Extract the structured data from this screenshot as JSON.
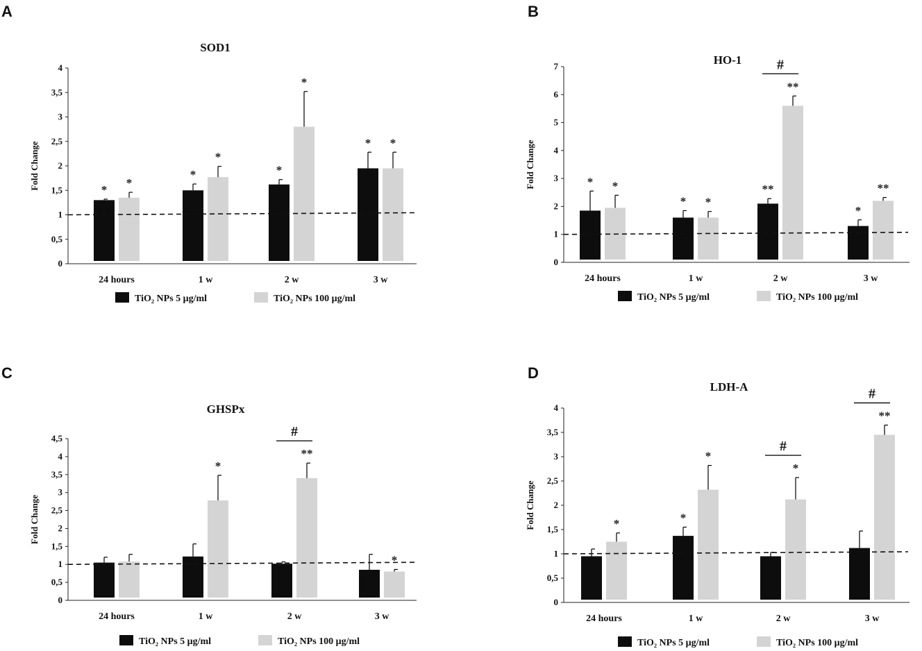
{
  "figure": {
    "series_colors": [
      "#0d0d0d",
      "#d4d4d4"
    ],
    "error_color": "#000000",
    "baseline_value": 1,
    "legend": [
      "TiO₂ NPs 5 μg/ml",
      "TiO₂ NPs 100 μg/ml"
    ]
  },
  "chart_data": [
    {
      "panel": "A",
      "type": "bar",
      "title": "SOD1",
      "ylabel": "Fold Change",
      "xlabel": "",
      "categories": [
        "24 hours",
        "1 w",
        "2 w",
        "3 w"
      ],
      "ylim": [
        0,
        4
      ],
      "yticks": [
        0,
        0.5,
        1,
        1.5,
        2,
        2.5,
        3,
        3.5,
        4
      ],
      "ytick_labels": [
        "0",
        "0,5",
        "1",
        "1,5",
        "2",
        "2,5",
        "3",
        "3,5",
        "4"
      ],
      "series": [
        {
          "name": "TiO₂ NPs 5 μg/ml",
          "values": [
            1.3,
            1.5,
            1.62,
            1.95
          ],
          "errors": [
            0.02,
            0.13,
            0.1,
            0.33
          ],
          "significance": [
            "*",
            "*",
            "*",
            "*"
          ]
        },
        {
          "name": "TiO₂ NPs 100 μg/ml",
          "values": [
            1.35,
            1.77,
            2.8,
            1.95
          ],
          "errors": [
            0.11,
            0.22,
            0.72,
            0.33
          ],
          "significance": [
            "*",
            "*",
            "*",
            "*"
          ]
        }
      ],
      "group_brackets": []
    },
    {
      "panel": "B",
      "type": "bar",
      "title": "HO-1",
      "ylabel": "Fold Change",
      "xlabel": "",
      "categories": [
        "24 hours",
        "1 w",
        "2 w",
        "3 w"
      ],
      "ylim": [
        0,
        7
      ],
      "yticks": [
        0,
        1,
        2,
        3,
        4,
        5,
        6,
        7
      ],
      "ytick_labels": [
        "0",
        "1",
        "2",
        "3",
        "4",
        "5",
        "6",
        "7"
      ],
      "series": [
        {
          "name": "TiO₂ NPs 5 μg/ml",
          "values": [
            1.85,
            1.6,
            2.1,
            1.3
          ],
          "errors": [
            0.7,
            0.25,
            0.18,
            0.22
          ],
          "significance": [
            "*",
            "*",
            "**",
            "*"
          ]
        },
        {
          "name": "TiO₂ NPs 100 μg/ml",
          "values": [
            1.95,
            1.6,
            5.6,
            2.2
          ],
          "errors": [
            0.45,
            0.22,
            0.35,
            0.12
          ],
          "significance": [
            "*",
            "*",
            "**",
            "**"
          ]
        }
      ],
      "group_brackets": [
        {
          "category_index": 2,
          "label": "#"
        }
      ]
    },
    {
      "panel": "C",
      "type": "bar",
      "title": "GHSPx",
      "ylabel": "Fold Change",
      "xlabel": "",
      "categories": [
        "24 hours",
        "1 w",
        "2 w",
        "3 w"
      ],
      "ylim": [
        0,
        4.5
      ],
      "yticks": [
        0,
        0.5,
        1,
        1.5,
        2,
        2.5,
        3,
        3.5,
        4,
        4.5
      ],
      "ytick_labels": [
        "0",
        "0,5",
        "1",
        "1,5",
        "2",
        "2,5",
        "3",
        "3,5",
        "4",
        "4,5"
      ],
      "series": [
        {
          "name": "TiO₂ NPs 5 μg/ml",
          "values": [
            1.05,
            1.22,
            1.02,
            0.85
          ],
          "errors": [
            0.15,
            0.35,
            0.05,
            0.43
          ],
          "significance": [
            "",
            "",
            "",
            ""
          ]
        },
        {
          "name": "TiO₂ NPs 100 μg/ml",
          "values": [
            1.08,
            2.78,
            3.4,
            0.8
          ],
          "errors": [
            0.2,
            0.7,
            0.42,
            0.06
          ],
          "significance": [
            "",
            "*",
            "**",
            "*"
          ]
        }
      ],
      "group_brackets": [
        {
          "category_index": 2,
          "label": "#"
        }
      ]
    },
    {
      "panel": "D",
      "type": "bar",
      "title": "LDH-A",
      "ylabel": "Fold Change",
      "xlabel": "",
      "categories": [
        "24 hours",
        "1 w",
        "2 w",
        "3 w"
      ],
      "ylim": [
        0,
        4
      ],
      "yticks": [
        0,
        0.5,
        1,
        1.5,
        2,
        2.5,
        3,
        3.5,
        4
      ],
      "ytick_labels": [
        "0",
        "0,5",
        "1",
        "1,5",
        "2",
        "2,5",
        "3",
        "3,5",
        "4"
      ],
      "series": [
        {
          "name": "TiO₂ NPs 5 μg/ml",
          "values": [
            0.95,
            1.37,
            0.95,
            1.12
          ],
          "errors": [
            0.15,
            0.18,
            0.08,
            0.35
          ],
          "significance": [
            "",
            "*",
            "",
            ""
          ]
        },
        {
          "name": "TiO₂ NPs 100 μg/ml",
          "values": [
            1.25,
            2.32,
            2.12,
            3.45
          ],
          "errors": [
            0.18,
            0.5,
            0.45,
            0.2
          ],
          "significance": [
            "*",
            "*",
            "*",
            "**"
          ]
        }
      ],
      "group_brackets": [
        {
          "category_index": 2,
          "label": "#"
        },
        {
          "category_index": 3,
          "label": "#"
        }
      ]
    }
  ]
}
